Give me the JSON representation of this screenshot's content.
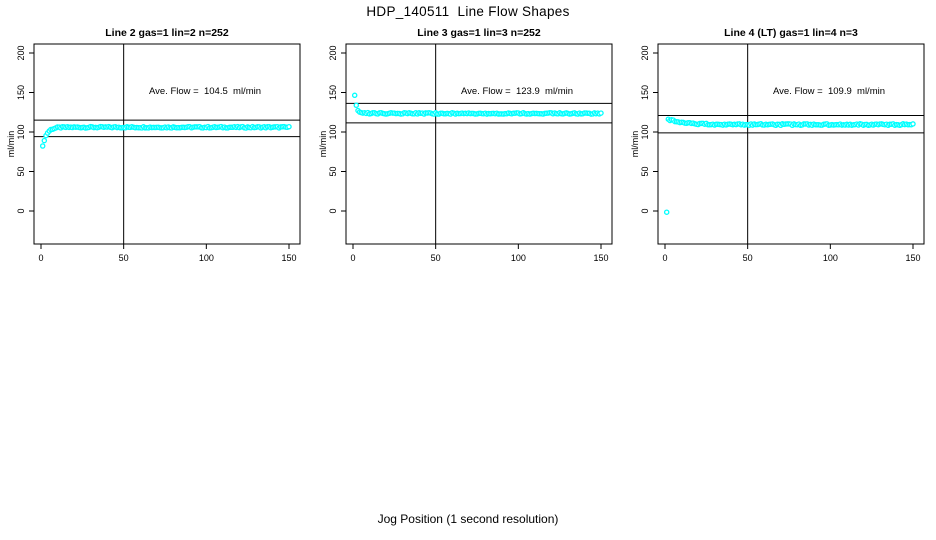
{
  "page": {
    "background": "#ffffff"
  },
  "header": {
    "main_title": "HDP_140511  Line Flow Shapes"
  },
  "footer": {
    "xlabel": "Jog Position (1 second resolution)"
  },
  "style_tokens": {
    "point_color": "#00FFFF",
    "line_color": "#000000",
    "text_color": "#000000"
  },
  "chart_data": [
    {
      "type": "scatter",
      "title": "Line 2 gas=1 lin=2 n=252",
      "line": 2,
      "gas": 1,
      "lin": 2,
      "n": 252,
      "annotation": "Ave. Flow =  104.5  ml/min",
      "ave_flow": 104.5,
      "ylabel": "ml/min",
      "xticks": [
        0,
        50,
        100,
        150
      ],
      "yticks": [
        0,
        50,
        100,
        150,
        200
      ],
      "xlim": [
        -4.2,
        156.6
      ],
      "ylim": [
        -42,
        211
      ],
      "grid": false,
      "ref_lines_y": [
        115.0,
        94.1
      ],
      "ref_line_x": 50,
      "marker": {
        "shape": "open-circle",
        "color": "#00FFFF",
        "radius": 2.1
      },
      "series": {
        "name": "flow",
        "model": "y = base + amp*exp(-(x-x0)/tau)",
        "x_start": 1,
        "x_end": 150,
        "x_step": 1,
        "base": 106.0,
        "amp": -24.5,
        "x0": 1,
        "tau": 2.4,
        "jitter": 0.9,
        "outliers": [],
        "sample_points": [
          [
            1,
            81.5
          ],
          [
            2,
            89.8
          ],
          [
            3,
            95.3
          ],
          [
            5,
            101.3
          ],
          [
            10,
            105.4
          ],
          [
            50,
            106
          ],
          [
            100,
            106
          ],
          [
            150,
            106
          ]
        ]
      }
    },
    {
      "type": "scatter",
      "title": "Line 3 gas=1 lin=3 n=252",
      "line": 3,
      "gas": 1,
      "lin": 3,
      "n": 252,
      "annotation": "Ave. Flow =  123.9  ml/min",
      "ave_flow": 123.9,
      "ylabel": "ml/min",
      "xticks": [
        0,
        50,
        100,
        150
      ],
      "yticks": [
        0,
        50,
        100,
        150,
        200
      ],
      "xlim": [
        -4.2,
        156.6
      ],
      "ylim": [
        -42,
        211
      ],
      "grid": false,
      "ref_lines_y": [
        136.3,
        111.5
      ],
      "ref_line_x": 50,
      "marker": {
        "shape": "open-circle",
        "color": "#00FFFF",
        "radius": 2.1
      },
      "series": {
        "name": "flow",
        "model": "y = base + amp*exp(-(x-x0)/tau)",
        "x_start": 1,
        "x_end": 150,
        "x_step": 1,
        "base": 123.6,
        "amp": 22.6,
        "x0": 1,
        "tau": 1.15,
        "jitter": 0.9,
        "outliers": [],
        "sample_points": [
          [
            1,
            146.2
          ],
          [
            2,
            133.1
          ],
          [
            3,
            127.6
          ],
          [
            5,
            124.3
          ],
          [
            10,
            123.6
          ],
          [
            50,
            123.6
          ],
          [
            100,
            123.6
          ],
          [
            150,
            123.6
          ]
        ]
      }
    },
    {
      "type": "scatter",
      "title": "Line 4 (LT) gas=1 lin=4 n=3",
      "line": 4,
      "line_note": "(LT)",
      "gas": 1,
      "lin": 4,
      "n": 3,
      "annotation": "Ave. Flow =  109.9  ml/min",
      "ave_flow": 109.9,
      "ylabel": "ml/min",
      "xticks": [
        0,
        50,
        100,
        150
      ],
      "yticks": [
        0,
        50,
        100,
        150,
        200
      ],
      "xlim": [
        -4.2,
        156.6
      ],
      "ylim": [
        -42,
        211
      ],
      "grid": false,
      "ref_lines_y": [
        120.9,
        98.9
      ],
      "ref_line_x": 50,
      "marker": {
        "shape": "open-circle",
        "color": "#00FFFF",
        "radius": 2.1
      },
      "series": {
        "name": "flow",
        "model": "y = base + amp*exp(-(x-x0)/tau)",
        "x_start": 1,
        "x_end": 150,
        "x_step": 1,
        "base": 109.4,
        "amp": 6.8,
        "x0": 2,
        "tau": 9,
        "jitter": 1.0,
        "outliers": [
          [
            1,
            -1.5
          ]
        ],
        "sample_points": [
          [
            1,
            -1.5
          ],
          [
            2,
            116.2
          ],
          [
            3,
            115.5
          ],
          [
            5,
            114.3
          ],
          [
            10,
            112.2
          ],
          [
            20,
            110.4
          ],
          [
            50,
            109.4
          ],
          [
            100,
            109.4
          ],
          [
            150,
            109.4
          ]
        ]
      }
    }
  ]
}
